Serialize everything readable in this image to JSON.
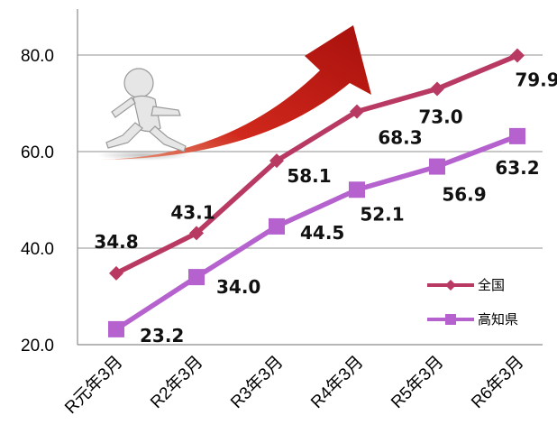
{
  "chart_data": {
    "type": "line",
    "categories": [
      "R元年3月",
      "R2年3月",
      "R3年3月",
      "R4年3月",
      "R5年3月",
      "R6年3月"
    ],
    "series": [
      {
        "name": "全国",
        "values": [
          34.8,
          43.1,
          58.1,
          68.3,
          73.0,
          79.9
        ],
        "labels": [
          "34.8",
          "43.1",
          "58.1",
          "68.3",
          "73.0",
          "79.9"
        ],
        "color": "#b83a62",
        "marker": "diamond"
      },
      {
        "name": "高知県",
        "values": [
          23.2,
          34.0,
          44.5,
          52.1,
          56.9,
          63.2
        ],
        "labels": [
          "23.2",
          "34.0",
          "44.5",
          "52.1",
          "56.9",
          "63.2"
        ],
        "color": "#b562cf",
        "marker": "square"
      }
    ],
    "yticks": [
      "20.0",
      "40.0",
      "60.0",
      "80.0"
    ],
    "ylim": [
      20,
      80
    ],
    "grid": true,
    "legend_position": "bottom-right",
    "decoration": "running person with red rising arrow"
  }
}
